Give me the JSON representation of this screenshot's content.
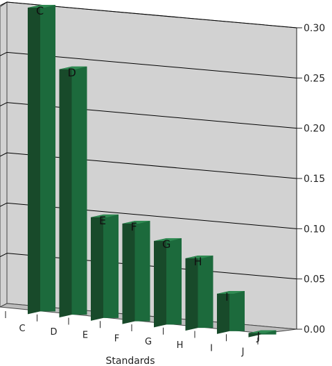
{
  "chart_data": {
    "type": "bar",
    "three_d": true,
    "categories": [
      "C",
      "D",
      "E",
      "F",
      "G",
      "H",
      "I",
      "J"
    ],
    "values": [
      0.305,
      0.247,
      0.103,
      0.1,
      0.086,
      0.072,
      0.04,
      -0.004
    ],
    "data_labels": [
      "C",
      "D",
      "E",
      "F",
      "G",
      "H",
      "I",
      "J"
    ],
    "xlabel": "Standards",
    "ylabel": "",
    "ylim": [
      0,
      0.3
    ],
    "yticks": [
      "0.00",
      "0.05",
      "0.10",
      "0.15",
      "0.20",
      "0.25",
      "0.30"
    ],
    "grid": true,
    "legend": "none",
    "colors": {
      "bar_front": "#1c6a3c",
      "bar_side": "#184a2a",
      "bar_top": "#2f8a52",
      "wall": "#d2d2d2",
      "floor": "#bdbdbd",
      "gridline": "#000000"
    }
  }
}
